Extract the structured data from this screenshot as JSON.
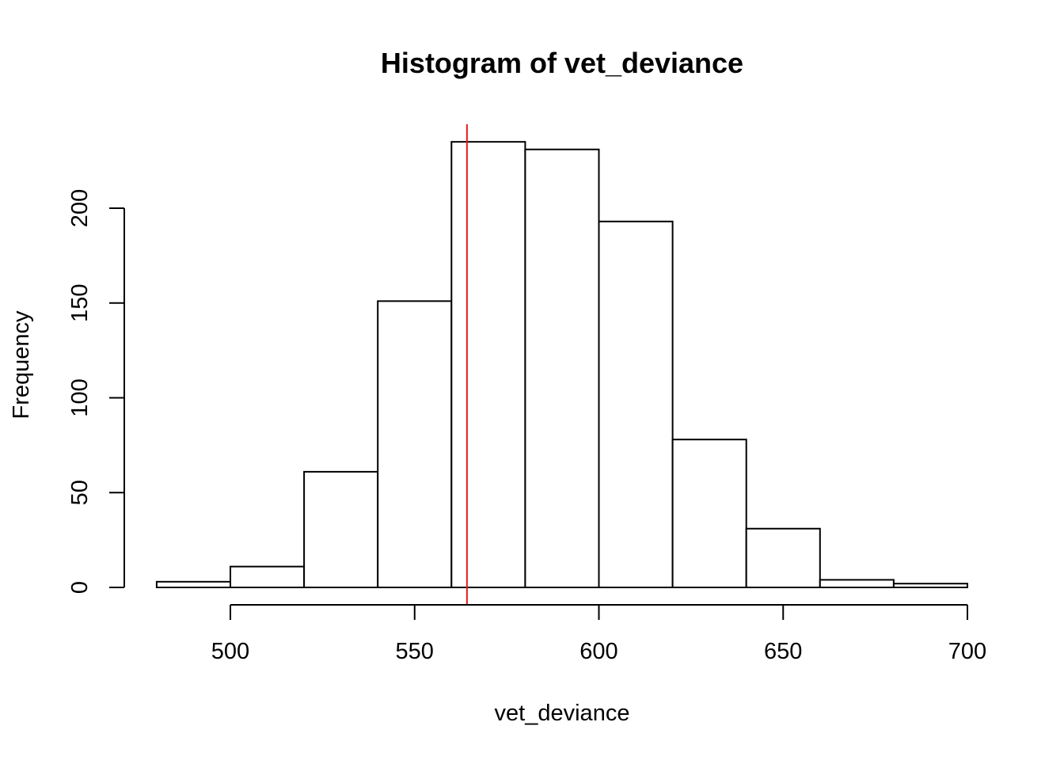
{
  "chart_data": {
    "type": "bar",
    "title": "Histogram of vet_deviance",
    "xlabel": "vet_deviance",
    "ylabel": "Frequency",
    "bins": [
      {
        "start": 480,
        "end": 500,
        "count": 3
      },
      {
        "start": 500,
        "end": 520,
        "count": 11
      },
      {
        "start": 520,
        "end": 540,
        "count": 61
      },
      {
        "start": 540,
        "end": 560,
        "count": 151
      },
      {
        "start": 560,
        "end": 580,
        "count": 235
      },
      {
        "start": 580,
        "end": 600,
        "count": 231
      },
      {
        "start": 600,
        "end": 620,
        "count": 193
      },
      {
        "start": 620,
        "end": 640,
        "count": 78
      },
      {
        "start": 640,
        "end": 660,
        "count": 31
      },
      {
        "start": 660,
        "end": 680,
        "count": 4
      },
      {
        "start": 680,
        "end": 700,
        "count": 2
      }
    ],
    "x_ticks": [
      500,
      550,
      600,
      650,
      700
    ],
    "y_ticks": [
      0,
      50,
      100,
      150,
      200
    ],
    "xlim": [
      480,
      700
    ],
    "ylim": [
      0,
      245
    ],
    "reference_line": {
      "x": 564.2,
      "color": "#e31a1c"
    },
    "bar_fill": "#ffffff",
    "bar_stroke": "#000000",
    "grid": false,
    "legend": "none"
  }
}
